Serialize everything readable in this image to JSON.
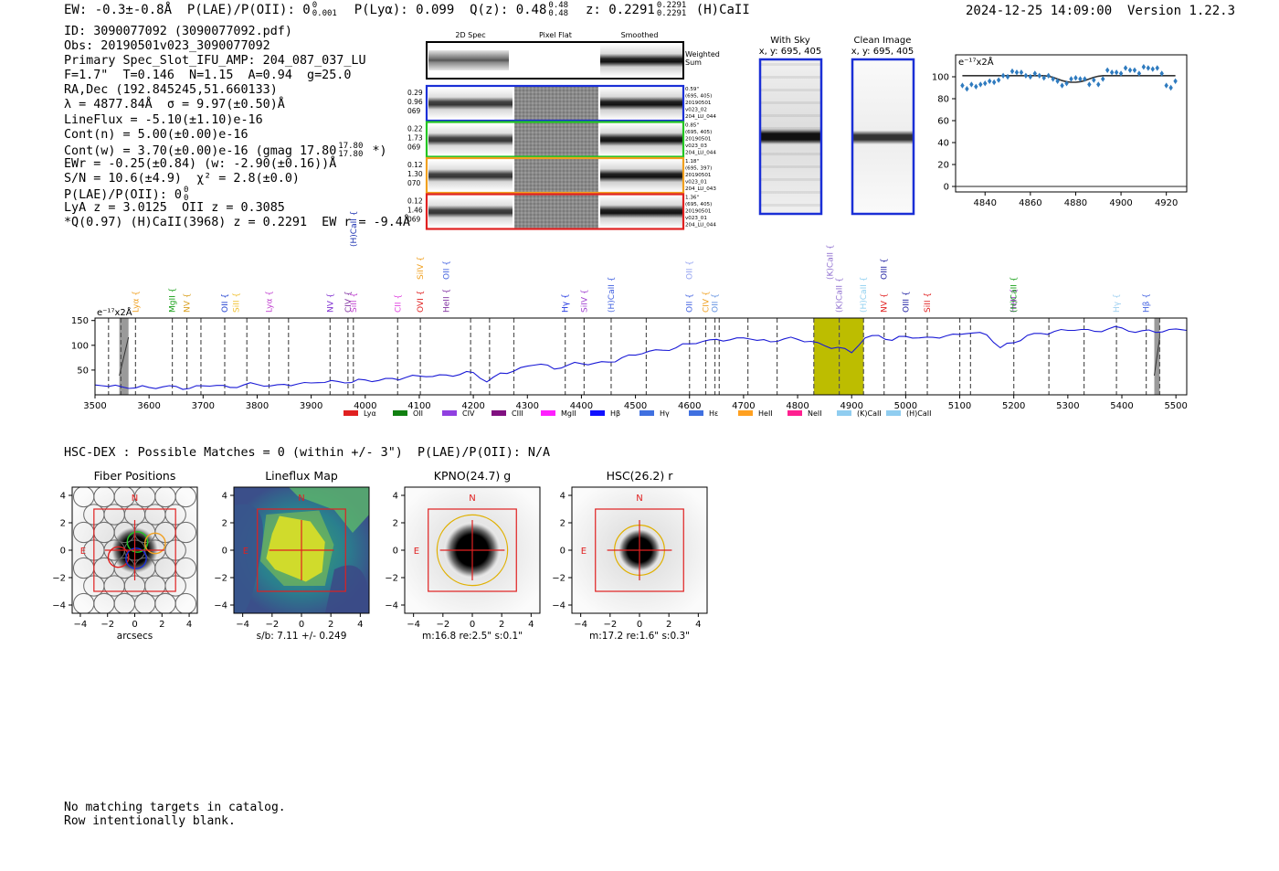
{
  "header": {
    "ew": "EW: -0.3±-0.8Å",
    "plae_label": "P(LAE)/P(OII): 0",
    "plae_sup": "0",
    "plae_sub": "0.001",
    "plya": "P(Lyα): 0.099",
    "qz_label": "Q(z): 0.48",
    "qz_sup": "0.48",
    "qz_sub": "0.48",
    "z_label": "z: 0.2291",
    "z_sup": "0.2291",
    "z_sub": "0.2291",
    "z_line": "(H)CaII",
    "timestamp": "2024-12-25 14:09:00",
    "version": "Version 1.22.3"
  },
  "info": {
    "id": "ID: 3090077092 (3090077092.pdf)",
    "obs": "Obs: 20190501v023_3090077092",
    "primary": "Primary Spec_Slot_IFU_AMP: 204_087_037_LU",
    "params": "F=1.7\"  T=0.146  N=1.15  A=0.94  g=25.0",
    "radec": "RA,Dec (192.845245,51.660133)",
    "lambda_sigma": "λ = 4877.84Å  σ = 9.97(±0.50)Å",
    "lineflux": "LineFlux = -5.10(±1.10)e-16",
    "contn": "Cont(n) = 5.00(±0.00)e-16",
    "contw_a": "Cont(w) = 3.70(±0.00)e-16 (gmag 17.80",
    "contw_sup": "17.80",
    "contw_sub": "17.80",
    "contw_b": "*)",
    "ewr": "EWr = -0.25(±0.84) (w: -2.90(±0.16))Å",
    "sn": "S/N = 10.6(±4.9)  χ² = 2.8(±0.0)",
    "plae2": "P(LAE)/P(OII): 0",
    "plae2_sup": "0",
    "plae2_sub": "0",
    "lya": "LyA z = 3.0125  OII z = 0.3085",
    "q": "*Q(0.97) (H)CaII(3968) z = 0.2291  EW r = -9.4Å"
  },
  "cutouts": {
    "col_headers": [
      "2D Spec",
      "Pixel Flat",
      "Smoothed"
    ],
    "weighted_label": [
      "Weighted",
      "Sum"
    ],
    "rows": [
      {
        "color": "#1a2fd6",
        "left": [
          "0.29",
          "0.96",
          "069"
        ],
        "right": [
          "0.59\"",
          "(695, 405)",
          "20190501",
          "v023_02",
          "204_LU_044"
        ]
      },
      {
        "color": "#22c522",
        "left": [
          "0.22",
          "1.73",
          "069"
        ],
        "right": [
          "0.85\"",
          "(695, 405)",
          "20190501",
          "v023_03",
          "204_LU_044"
        ]
      },
      {
        "color": "#f0a020",
        "left": [
          "0.12",
          "1.30",
          "070"
        ],
        "right": [
          "1.18\"",
          "(695, 397)",
          "20190501",
          "v023_01",
          "204_LU_043"
        ]
      },
      {
        "color": "#e02020",
        "left": [
          "0.12",
          "1.46",
          "069"
        ],
        "right": [
          "1.36\"",
          "(695, 405)",
          "20190501",
          "v023_01",
          "204_LU_044"
        ]
      }
    ]
  },
  "skypanels": [
    {
      "title": "With Sky",
      "coords": "x, y: 695, 405"
    },
    {
      "title": "Clean Image",
      "coords": "x, y: 695, 405"
    }
  ],
  "zoom_chart": {
    "ylabel": "e⁻¹⁷x2Å",
    "yticks": [
      "0",
      "20",
      "40",
      "60",
      "80",
      "100"
    ],
    "xticks": [
      "4840",
      "4860",
      "4880",
      "4900",
      "4920"
    ]
  },
  "chart_data": [
    {
      "type": "scatter",
      "title": "",
      "ylabel": "e^-17 x2Å",
      "xlim": [
        4827,
        4929
      ],
      "ylim": [
        -5,
        120
      ],
      "x": [
        4830,
        4832,
        4834,
        4836,
        4838,
        4840,
        4842,
        4844,
        4846,
        4848,
        4850,
        4852,
        4854,
        4856,
        4858,
        4860,
        4862,
        4864,
        4866,
        4868,
        4870,
        4872,
        4874,
        4876,
        4878,
        4880,
        4882,
        4884,
        4886,
        4888,
        4890,
        4892,
        4894,
        4896,
        4898,
        4900,
        4902,
        4904,
        4906,
        4908,
        4910,
        4912,
        4914,
        4916,
        4918,
        4920,
        4922,
        4924
      ],
      "y": [
        92,
        89,
        93,
        91,
        93,
        94,
        96,
        95,
        97,
        101,
        100,
        105,
        104,
        104,
        101,
        100,
        103,
        101,
        99,
        101,
        98,
        96,
        92,
        94,
        98,
        99,
        98,
        98,
        93,
        97,
        93,
        98,
        106,
        104,
        104,
        103,
        108,
        106,
        106,
        103,
        109,
        108,
        107,
        108,
        103,
        92,
        90,
        96
      ],
      "fit_y": [
        101,
        101,
        101,
        101,
        101,
        101,
        101,
        101,
        101,
        101,
        101,
        101,
        101,
        101,
        101,
        101,
        101,
        101,
        101,
        100.5,
        99.5,
        98,
        96.5,
        95.5,
        95,
        95,
        95.5,
        96.5,
        98,
        99.5,
        100.5,
        101,
        101,
        101,
        101,
        101,
        101,
        101,
        101,
        101,
        101,
        101,
        101,
        101,
        101,
        101,
        101,
        101
      ]
    },
    {
      "type": "line",
      "title": "",
      "ylabel": "e^-17 x2Å",
      "xlim": [
        3500,
        5520
      ],
      "ylim": [
        0,
        155
      ],
      "yticks": [
        50,
        100,
        150
      ],
      "xticks": [
        3500,
        3600,
        3700,
        3800,
        3900,
        4000,
        4100,
        4200,
        4300,
        4400,
        4500,
        4600,
        4700,
        4800,
        4900,
        5000,
        5100,
        5200,
        5300,
        5400,
        5500
      ],
      "x": [
        3500,
        3525,
        3550,
        3575,
        3600,
        3625,
        3650,
        3675,
        3700,
        3725,
        3750,
        3775,
        3800,
        3825,
        3850,
        3875,
        3900,
        3925,
        3950,
        3975,
        4000,
        4025,
        4050,
        4075,
        4100,
        4125,
        4150,
        4175,
        4200,
        4225,
        4250,
        4275,
        4300,
        4325,
        4350,
        4375,
        4400,
        4425,
        4450,
        4475,
        4500,
        4525,
        4550,
        4575,
        4600,
        4625,
        4650,
        4675,
        4700,
        4725,
        4750,
        4775,
        4800,
        4825,
        4850,
        4875,
        4900,
        4925,
        4950,
        4975,
        5000,
        5025,
        5050,
        5075,
        5100,
        5125,
        5150,
        5175,
        5200,
        5225,
        5250,
        5275,
        5300,
        5325,
        5350,
        5375,
        5400,
        5425,
        5450,
        5475,
        5500,
        5520
      ],
      "y": [
        20,
        17,
        16,
        14,
        15,
        16,
        17,
        13,
        18,
        19,
        15,
        20,
        21,
        18,
        21,
        22,
        24,
        25,
        27,
        25,
        30,
        29,
        33,
        35,
        38,
        37,
        40,
        41,
        45,
        26,
        44,
        48,
        58,
        62,
        52,
        60,
        63,
        64,
        66,
        75,
        80,
        88,
        90,
        95,
        103,
        108,
        112,
        111,
        115,
        110,
        107,
        113,
        112,
        108,
        99,
        96,
        85,
        115,
        120,
        110,
        118,
        115,
        116,
        119,
        122,
        125,
        121,
        95,
        105,
        120,
        124,
        128,
        130,
        132,
        128,
        133,
        135,
        126,
        131,
        127,
        133,
        130
      ],
      "bands": [
        {
          "x0": 3545,
          "x1": 3562,
          "kind": "gray"
        },
        {
          "x0": 4830,
          "x1": 4922,
          "kind": "olive"
        },
        {
          "x0": 5460,
          "x1": 5470,
          "kind": "gray"
        }
      ],
      "dashed_lines": [
        3525,
        3548,
        3575,
        3643,
        3670,
        3696,
        3740,
        3781,
        3822,
        3858,
        3935,
        3968,
        3978,
        4060,
        4102,
        4195,
        4230,
        4275,
        4370,
        4405,
        4455,
        4520,
        4600,
        4630,
        4647,
        4655,
        4708,
        4762,
        4830,
        4877,
        4922,
        4960,
        5000,
        5040,
        5100,
        5120,
        5200,
        5265,
        5330,
        5390,
        5445,
        5470
      ],
      "line_labels": [
        {
          "text": "Lyα",
          "x": 3575,
          "color": "#f0a020",
          "tier": 0
        },
        {
          "text": "MgII",
          "x": 3643,
          "color": "#18a018",
          "tier": 0
        },
        {
          "text": "NV",
          "x": 3670,
          "color": "#d9a020",
          "tier": 0
        },
        {
          "text": "OII",
          "x": 3740,
          "color": "#2040d0",
          "tier": 0
        },
        {
          "text": "SiII",
          "x": 3761,
          "color": "#f0c030",
          "tier": 0
        },
        {
          "text": "Lyα",
          "x": 3822,
          "color": "#c040d0",
          "tier": 0
        },
        {
          "text": "NV",
          "x": 3935,
          "color": "#8030d0",
          "tier": 0
        },
        {
          "text": "CIV",
          "x": 3968,
          "color": "#8030a0",
          "tier": 0
        },
        {
          "text": "SiII",
          "x": 3978,
          "color": "#c040d0",
          "tier": 0
        },
        {
          "text": "(H)CaII",
          "x": 3978,
          "color": "#1a30b0",
          "tier": 2
        },
        {
          "text": "CII",
          "x": 4060,
          "color": "#e040e0",
          "tier": 0
        },
        {
          "text": "OVI",
          "x": 4102,
          "color": "#e02020",
          "tier": 0
        },
        {
          "text": "HeII",
          "x": 4150,
          "color": "#8030a0",
          "tier": 0
        },
        {
          "text": "SiIV",
          "x": 4102,
          "color": "#f0a020",
          "tier": 1
        },
        {
          "text": "OII",
          "x": 4150,
          "color": "#4060e0",
          "tier": 1
        },
        {
          "text": "Hγ",
          "x": 4370,
          "color": "#1a30e0",
          "tier": 0
        },
        {
          "text": "SiIV",
          "x": 4405,
          "color": "#a040d0",
          "tier": 0
        },
        {
          "text": "(H)CaII",
          "x": 4455,
          "color": "#4060e0",
          "tier": 0
        },
        {
          "text": "OII",
          "x": 4600,
          "color": "#4060e0",
          "tier": 0
        },
        {
          "text": "CIV",
          "x": 4630,
          "color": "#f0a020",
          "tier": 0
        },
        {
          "text": "OII",
          "x": 4647,
          "color": "#6090e0",
          "tier": 0
        },
        {
          "text": "OII",
          "x": 4600,
          "color": "#90a0f0",
          "tier": 1
        },
        {
          "text": "(K)CaII",
          "x": 4877,
          "color": "#9070d0",
          "tier": 0
        },
        {
          "text": "(K)CaII",
          "x": 4860,
          "color": "#9070d0",
          "tier": 1
        },
        {
          "text": "(H)CaII",
          "x": 4922,
          "color": "#90d0f0",
          "tier": 0
        },
        {
          "text": "NV",
          "x": 4960,
          "color": "#e02020",
          "tier": 0
        },
        {
          "text": "OIII",
          "x": 4960,
          "color": "#1a1aa0",
          "tier": 1
        },
        {
          "text": "OIII",
          "x": 5000,
          "color": "#1a1aa0",
          "tier": 0
        },
        {
          "text": "SiII",
          "x": 5040,
          "color": "#e02020",
          "tier": 0
        },
        {
          "text": "HeII",
          "x": 5200,
          "color": "#a030d0",
          "tier": 0
        },
        {
          "text": "(H)CaII",
          "x": 5200,
          "color": "#18a018",
          "tier": 0
        },
        {
          "text": "Hγ",
          "x": 5390,
          "color": "#a0d0f0",
          "tier": 0
        },
        {
          "text": "Hβ",
          "x": 5445,
          "color": "#4060e0",
          "tier": 0
        }
      ],
      "legend": [
        {
          "label": "Lyα",
          "color": "#e02020"
        },
        {
          "label": "OII",
          "color": "#108010"
        },
        {
          "label": "CIV",
          "color": "#9040e0"
        },
        {
          "label": "CIII",
          "color": "#801080"
        },
        {
          "label": "MgII",
          "color": "#ff20ff"
        },
        {
          "label": "Hβ",
          "color": "#1010ff"
        },
        {
          "label": "Hγ",
          "color": "#4070e0"
        },
        {
          "label": "Hε",
          "color": "#4070e0"
        },
        {
          "label": "HeII",
          "color": "#ffa020"
        },
        {
          "label": "NeII",
          "color": "#ff2090"
        },
        {
          "label": "(K)CaII",
          "color": "#90cdf0"
        },
        {
          "label": "(H)CaII",
          "color": "#90cdf0"
        }
      ]
    }
  ],
  "spectrum_ylabel": "e⁻¹⁷x2Å",
  "hsc_line": "HSC-DEX : Possible Matches = 0 (within +/- 3\")  P(LAE)/P(OII): N/A",
  "panels": [
    {
      "title": "Fiber Positions",
      "caption": "arcsecs",
      "N": "N",
      "E": "E"
    },
    {
      "title": "Lineflux Map",
      "caption": "s/b: 7.11 +/- 0.249",
      "N": "N",
      "E": "E"
    },
    {
      "title": "KPNO(24.7) g",
      "caption": "m:16.8  re:2.5\"  s:0.1\"",
      "N": "N",
      "E": "E"
    },
    {
      "title": "HSC(26.2) r",
      "caption": "m:17.2  re:1.6\"  s:0.3\"",
      "N": "N",
      "E": "E"
    }
  ],
  "panel_ticks": {
    "x": [
      "−4",
      "−2",
      "0",
      "2",
      "4"
    ],
    "y": [
      "4",
      "2",
      "0",
      "−2",
      "−4"
    ]
  },
  "footer": {
    "line1": "No matching targets in catalog.",
    "line2": "Row intentionally blank."
  }
}
